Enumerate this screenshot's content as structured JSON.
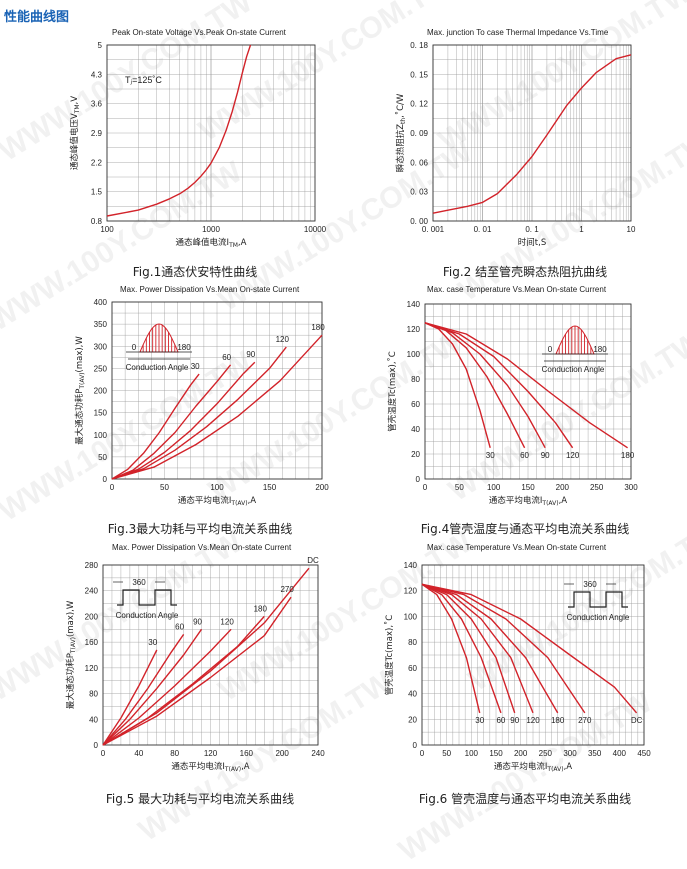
{
  "header": {
    "title": "性能曲线图"
  },
  "watermark": {
    "text": "WWW.100Y.COM.TW"
  },
  "colors": {
    "curve": "#d2232a",
    "grid": "#999999",
    "axis": "#333333"
  },
  "chart_data": [
    {
      "id": "fig1",
      "type": "line",
      "title": "Peak On-state Voltage Vs.Peak On-state Current",
      "caption": "Fig.1通态伏安特性曲线",
      "xlabel": "通态峰值电流I",
      "xlabel_sub": "TM",
      "xlabel_unit": ",A",
      "ylabel": "通态峰值电压V",
      "ylabel_sub": "TM",
      "ylabel_unit": ",V",
      "xscale": "log",
      "xlim": [
        100,
        10000
      ],
      "ylim": [
        0.8,
        5.0
      ],
      "xticks": [
        100,
        1000,
        10000
      ],
      "xticklabels": [
        "100",
        "1000",
        "10000"
      ],
      "yticks": [
        0.8,
        1.5,
        2.2,
        2.9,
        3.6,
        4.3,
        5.0
      ],
      "yticklabels": [
        "0.8",
        "1.5",
        "2.2",
        "2.9",
        "3.6",
        "4.3",
        "5"
      ],
      "annotation": "Tⱼ=125˚C",
      "series": [
        {
          "x": [
            100,
            200,
            300,
            400,
            500,
            600,
            700,
            800,
            900,
            1000,
            1200,
            1400,
            1600,
            1800,
            2000,
            2200,
            2400
          ],
          "y": [
            0.92,
            1.06,
            1.2,
            1.33,
            1.45,
            1.58,
            1.72,
            1.87,
            2.02,
            2.18,
            2.55,
            2.97,
            3.41,
            3.87,
            4.33,
            4.72,
            5.0
          ]
        }
      ]
    },
    {
      "id": "fig2",
      "type": "line",
      "title": "Max. junction To case Thermal Impedance Vs.Time",
      "caption": "Fig.2 结至管壳瞬态热阻抗曲线",
      "xlabel": "时间t,S",
      "ylabel": "瞬态热阻抗Z",
      "ylabel_sub": "th",
      "ylabel_unit": ",˚C/W",
      "xscale": "log",
      "xlim": [
        0.001,
        10
      ],
      "ylim": [
        0,
        0.18
      ],
      "xticks": [
        0.001,
        0.01,
        0.1,
        1,
        10
      ],
      "xticklabels": [
        "0. 001",
        "0. 01",
        "0. 1",
        "1",
        "10"
      ],
      "yticks": [
        0,
        0.03,
        0.06,
        0.09,
        0.12,
        0.15,
        0.18
      ],
      "yticklabels": [
        "0. 00",
        "0. 03",
        "0. 06",
        "0. 09",
        "0. 12",
        "0. 15",
        "0. 18"
      ],
      "series": [
        {
          "x": [
            0.001,
            0.002,
            0.005,
            0.01,
            0.02,
            0.05,
            0.1,
            0.2,
            0.5,
            1,
            2,
            5,
            10
          ],
          "y": [
            0.008,
            0.011,
            0.015,
            0.019,
            0.028,
            0.048,
            0.066,
            0.088,
            0.118,
            0.136,
            0.152,
            0.166,
            0.17
          ]
        }
      ]
    },
    {
      "id": "fig3",
      "type": "line",
      "title": "Max. Power Dissipation Vs.Mean On-state Current",
      "caption": "Fig.3最大功耗与平均电流关系曲线",
      "xlabel": "通态平均电流I",
      "xlabel_sub": "T(AV)",
      "xlabel_unit": ",A",
      "ylabel": "最大通态功耗P",
      "ylabel_sub": "T(AV)",
      "ylabel_unit": "(max),W",
      "xlim": [
        0,
        200
      ],
      "ylim": [
        0,
        400
      ],
      "xticks": [
        0,
        50,
        100,
        150,
        200
      ],
      "yticks": [
        0,
        50,
        100,
        150,
        200,
        250,
        300,
        350,
        400
      ],
      "inset": "sine",
      "inset_labels": [
        "0",
        "180"
      ],
      "inset_caption": "Conduction Angle",
      "series": [
        {
          "name": "30",
          "x": [
            0,
            15,
            30,
            45,
            60,
            75,
            83
          ],
          "y": [
            0,
            22,
            58,
            105,
            160,
            213,
            237
          ]
        },
        {
          "name": "60",
          "x": [
            0,
            20,
            40,
            60,
            80,
            100,
            113
          ],
          "y": [
            0,
            20,
            58,
            105,
            165,
            220,
            258
          ]
        },
        {
          "name": "90",
          "x": [
            0,
            25,
            50,
            75,
            100,
            125,
            136
          ],
          "y": [
            0,
            22,
            60,
            110,
            170,
            238,
            264
          ]
        },
        {
          "name": "120",
          "x": [
            0,
            30,
            60,
            90,
            120,
            150,
            166
          ],
          "y": [
            0,
            23,
            65,
            118,
            180,
            250,
            298
          ]
        },
        {
          "name": "180",
          "x": [
            0,
            40,
            80,
            120,
            160,
            200
          ],
          "y": [
            0,
            27,
            78,
            142,
            222,
            325
          ]
        }
      ]
    },
    {
      "id": "fig4",
      "type": "line",
      "title": "Max. case Temperature Vs.Mean On-state Current",
      "caption": "Fig.4管壳温度与通态平均电流关系曲线",
      "xlabel": "通态平均电流I",
      "xlabel_sub": "T(AV)",
      "xlabel_unit": ",A",
      "ylabel": "管壳温度Tc(max),˚C",
      "xlim": [
        0,
        300
      ],
      "ylim": [
        0,
        140
      ],
      "xticks": [
        0,
        50,
        100,
        150,
        200,
        250,
        300
      ],
      "yticks": [
        0,
        20,
        40,
        60,
        80,
        100,
        120,
        140
      ],
      "inset": "sine",
      "inset_labels": [
        "0",
        "180"
      ],
      "inset_caption": "Conduction Angle",
      "series": [
        {
          "name": "30",
          "x": [
            0,
            20,
            40,
            60,
            80,
            95
          ],
          "y": [
            125,
            120,
            108,
            88,
            55,
            25
          ]
        },
        {
          "name": "60",
          "x": [
            0,
            30,
            60,
            90,
            120,
            145
          ],
          "y": [
            125,
            119,
            105,
            82,
            52,
            25
          ]
        },
        {
          "name": "90",
          "x": [
            0,
            40,
            80,
            120,
            150,
            175
          ],
          "y": [
            125,
            117,
            100,
            75,
            50,
            25
          ]
        },
        {
          "name": "120",
          "x": [
            0,
            50,
            100,
            150,
            190,
            215
          ],
          "y": [
            125,
            116,
            98,
            70,
            45,
            25
          ]
        },
        {
          "name": "180",
          "x": [
            0,
            60,
            120,
            180,
            240,
            295
          ],
          "y": [
            125,
            116,
            96,
            70,
            45,
            25
          ]
        }
      ]
    },
    {
      "id": "fig5",
      "type": "line",
      "title": "Max. Power Dissipation Vs.Mean On-state Current",
      "caption": "Fig.5 最大功耗与平均电流关系曲线",
      "xlabel": "通态平均电流I",
      "xlabel_sub": "T(AV)",
      "xlabel_unit": ",A",
      "ylabel": "最大通态功耗P",
      "ylabel_sub": "T(AV)",
      "ylabel_unit": "(max),W",
      "xlim": [
        0,
        240
      ],
      "ylim": [
        0,
        280
      ],
      "xticks": [
        0,
        40,
        80,
        120,
        160,
        200,
        240
      ],
      "yticks": [
        0,
        40,
        80,
        120,
        160,
        200,
        240,
        280
      ],
      "inset": "square",
      "inset_labels": [
        "360"
      ],
      "inset_caption": "Conduction Angle",
      "series": [
        {
          "name": "30",
          "x": [
            0,
            20,
            40,
            60
          ],
          "y": [
            0,
            42,
            92,
            148
          ]
        },
        {
          "name": "60",
          "x": [
            0,
            25,
            50,
            75,
            90
          ],
          "y": [
            0,
            40,
            88,
            142,
            172
          ]
        },
        {
          "name": "90",
          "x": [
            0,
            30,
            60,
            90,
            110
          ],
          "y": [
            0,
            40,
            88,
            140,
            180
          ]
        },
        {
          "name": "120",
          "x": [
            0,
            40,
            80,
            120,
            143
          ],
          "y": [
            0,
            42,
            92,
            146,
            180
          ]
        },
        {
          "name": "180",
          "x": [
            0,
            50,
            100,
            150,
            180
          ],
          "y": [
            0,
            42,
            95,
            153,
            200
          ]
        },
        {
          "name": "270",
          "x": [
            0,
            60,
            120,
            180,
            210
          ],
          "y": [
            0,
            45,
            105,
            170,
            230
          ]
        },
        {
          "name": "DC",
          "x": [
            0,
            60,
            120,
            180,
            230
          ],
          "y": [
            0,
            50,
            115,
            190,
            275
          ]
        }
      ]
    },
    {
      "id": "fig6",
      "type": "line",
      "title": "Max. case Temperature Vs.Mean On-state Current",
      "caption": "Fig.6 管壳温度与通态平均电流关系曲线",
      "xlabel": "通态平均电流I",
      "xlabel_sub": "T(AV)",
      "xlabel_unit": ",A",
      "ylabel": "管壳温度Tc(max),˚C",
      "xlim": [
        0,
        450
      ],
      "ylim": [
        0,
        140
      ],
      "xticks": [
        0,
        50,
        100,
        150,
        200,
        250,
        300,
        350,
        400,
        450
      ],
      "yticks": [
        0,
        20,
        40,
        60,
        80,
        100,
        120,
        140
      ],
      "inset": "square",
      "inset_labels": [
        "360"
      ],
      "inset_caption": "Conduction Angle",
      "series": [
        {
          "name": "30",
          "x": [
            0,
            30,
            60,
            90,
            117
          ],
          "y": [
            125,
            117,
            98,
            68,
            25
          ]
        },
        {
          "name": "60",
          "x": [
            0,
            40,
            80,
            120,
            160
          ],
          "y": [
            125,
            117,
            98,
            68,
            25
          ]
        },
        {
          "name": "90",
          "x": [
            0,
            50,
            100,
            150,
            188
          ],
          "y": [
            125,
            117,
            98,
            68,
            25
          ]
        },
        {
          "name": "120",
          "x": [
            0,
            60,
            120,
            180,
            225
          ],
          "y": [
            125,
            117,
            98,
            68,
            25
          ]
        },
        {
          "name": "180",
          "x": [
            0,
            70,
            140,
            210,
            275
          ],
          "y": [
            125,
            117,
            98,
            68,
            25
          ]
        },
        {
          "name": "270",
          "x": [
            0,
            85,
            170,
            255,
            330
          ],
          "y": [
            125,
            117,
            98,
            68,
            25
          ]
        },
        {
          "name": "DC",
          "x": [
            0,
            100,
            200,
            300,
            390,
            435
          ],
          "y": [
            125,
            117,
            98,
            70,
            45,
            25
          ]
        }
      ]
    }
  ]
}
